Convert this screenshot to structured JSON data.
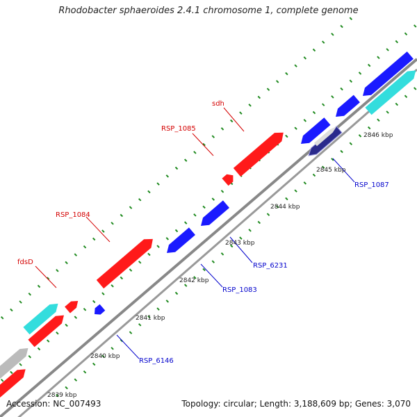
{
  "title": "Rhodobacter sphaeroides 2.4.1 chromosome 1, complete genome",
  "footer": {
    "accession": "Accession: NC_007493",
    "summary": "Topology: circular; Length: 3,188,609 bp; Genes: 3,070"
  },
  "colors": {
    "backbone": "#888888",
    "forward_gene": "#ff1a1a",
    "reverse_gene": "#1a1aff",
    "cyan_feature": "#33dddd",
    "gray_feature": "#bbbbbb",
    "dot_tick": "#1f8a1f",
    "label_forward": "#d40000",
    "label_reverse": "#0000cc"
  },
  "axis_ticks": [
    "2839 kbp",
    "2840 kbp",
    "2841 kbp",
    "2842 kbp",
    "2843 kbp",
    "2844 kbp",
    "2845 kbp",
    "2846 kbp"
  ],
  "gene_labels": {
    "forward": [
      "fdsD",
      "RSP_1084",
      "RSP_1085",
      "sdh"
    ],
    "reverse": [
      "RSP_6146",
      "RSP_1083",
      "RSP_6231",
      "RSP_1087"
    ]
  }
}
